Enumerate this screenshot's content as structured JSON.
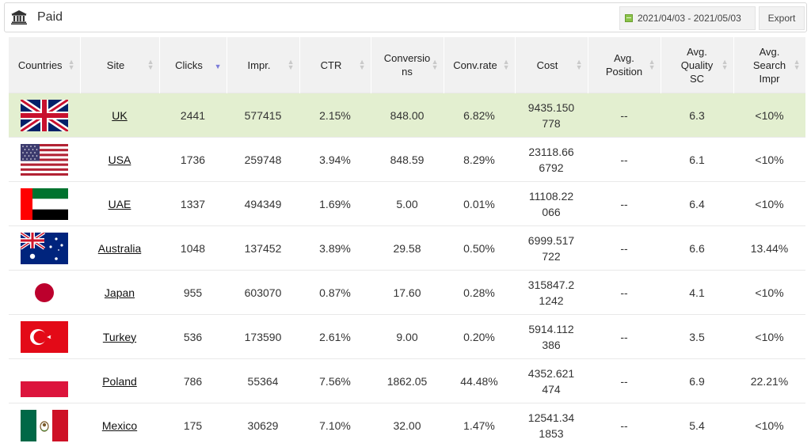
{
  "header": {
    "title": "Paid",
    "date_range": "2021/04/03 - 2021/05/03",
    "export_label": "Export"
  },
  "table": {
    "columns": [
      "Countries",
      "Site",
      "Clicks",
      "Impr.",
      "CTR",
      "Conversions",
      "Conv.rate",
      "Cost",
      "Avg. Position",
      "Avg. Quality SC",
      "Avg. Search Impr"
    ],
    "rows": [
      {
        "flag": "uk-flag-icon",
        "site": "UK",
        "clicks": "2441",
        "impr": "577415",
        "ctr": "2.15%",
        "conversions": "848.00",
        "conv_rate": "6.82%",
        "cost": "9435.150778",
        "avg_position": "--",
        "avg_quality": "6.3",
        "avg_search_impr": "<10%"
      },
      {
        "flag": "usa-flag-icon",
        "site": "USA",
        "clicks": "1736",
        "impr": "259748",
        "ctr": "3.94%",
        "conversions": "848.59",
        "conv_rate": "8.29%",
        "cost": "23118.666792",
        "avg_position": "--",
        "avg_quality": "6.1",
        "avg_search_impr": "<10%"
      },
      {
        "flag": "uae-flag-icon",
        "site": "UAE",
        "clicks": "1337",
        "impr": "494349",
        "ctr": "1.69%",
        "conversions": "5.00",
        "conv_rate": "0.01%",
        "cost": "11108.22066",
        "avg_position": "--",
        "avg_quality": "6.4",
        "avg_search_impr": "<10%"
      },
      {
        "flag": "australia-flag-icon",
        "site": "Australia",
        "clicks": "1048",
        "impr": "137452",
        "ctr": "3.89%",
        "conversions": "29.58",
        "conv_rate": "0.50%",
        "cost": "6999.517722",
        "avg_position": "--",
        "avg_quality": "6.6",
        "avg_search_impr": "13.44%"
      },
      {
        "flag": "japan-flag-icon",
        "site": "Japan",
        "clicks": "955",
        "impr": "603070",
        "ctr": "0.87%",
        "conversions": "17.60",
        "conv_rate": "0.28%",
        "cost": "315847.21242",
        "avg_position": "--",
        "avg_quality": "4.1",
        "avg_search_impr": "<10%"
      },
      {
        "flag": "turkey-flag-icon",
        "site": "Turkey",
        "clicks": "536",
        "impr": "173590",
        "ctr": "2.61%",
        "conversions": "9.00",
        "conv_rate": "0.20%",
        "cost": "5914.112386",
        "avg_position": "--",
        "avg_quality": "3.5",
        "avg_search_impr": "<10%"
      },
      {
        "flag": "poland-flag-icon",
        "site": "Poland",
        "clicks": "786",
        "impr": "55364",
        "ctr": "7.56%",
        "conversions": "1862.05",
        "conv_rate": "44.48%",
        "cost": "4352.621474",
        "avg_position": "--",
        "avg_quality": "6.9",
        "avg_search_impr": "22.21%"
      },
      {
        "flag": "mexico-flag-icon",
        "site": "Mexico",
        "clicks": "175",
        "impr": "30629",
        "ctr": "7.10%",
        "conversions": "32.00",
        "conv_rate": "1.47%",
        "cost": "12541.341853",
        "avg_position": "--",
        "avg_quality": "5.4",
        "avg_search_impr": "<10%"
      }
    ]
  },
  "icons": {
    "title": "bank-icon",
    "date": "calendar-icon"
  },
  "colors": {
    "highlight_row": "#e3efd0",
    "header_bg": "#f1f1f1",
    "active_sort": "#7b7bd8"
  }
}
